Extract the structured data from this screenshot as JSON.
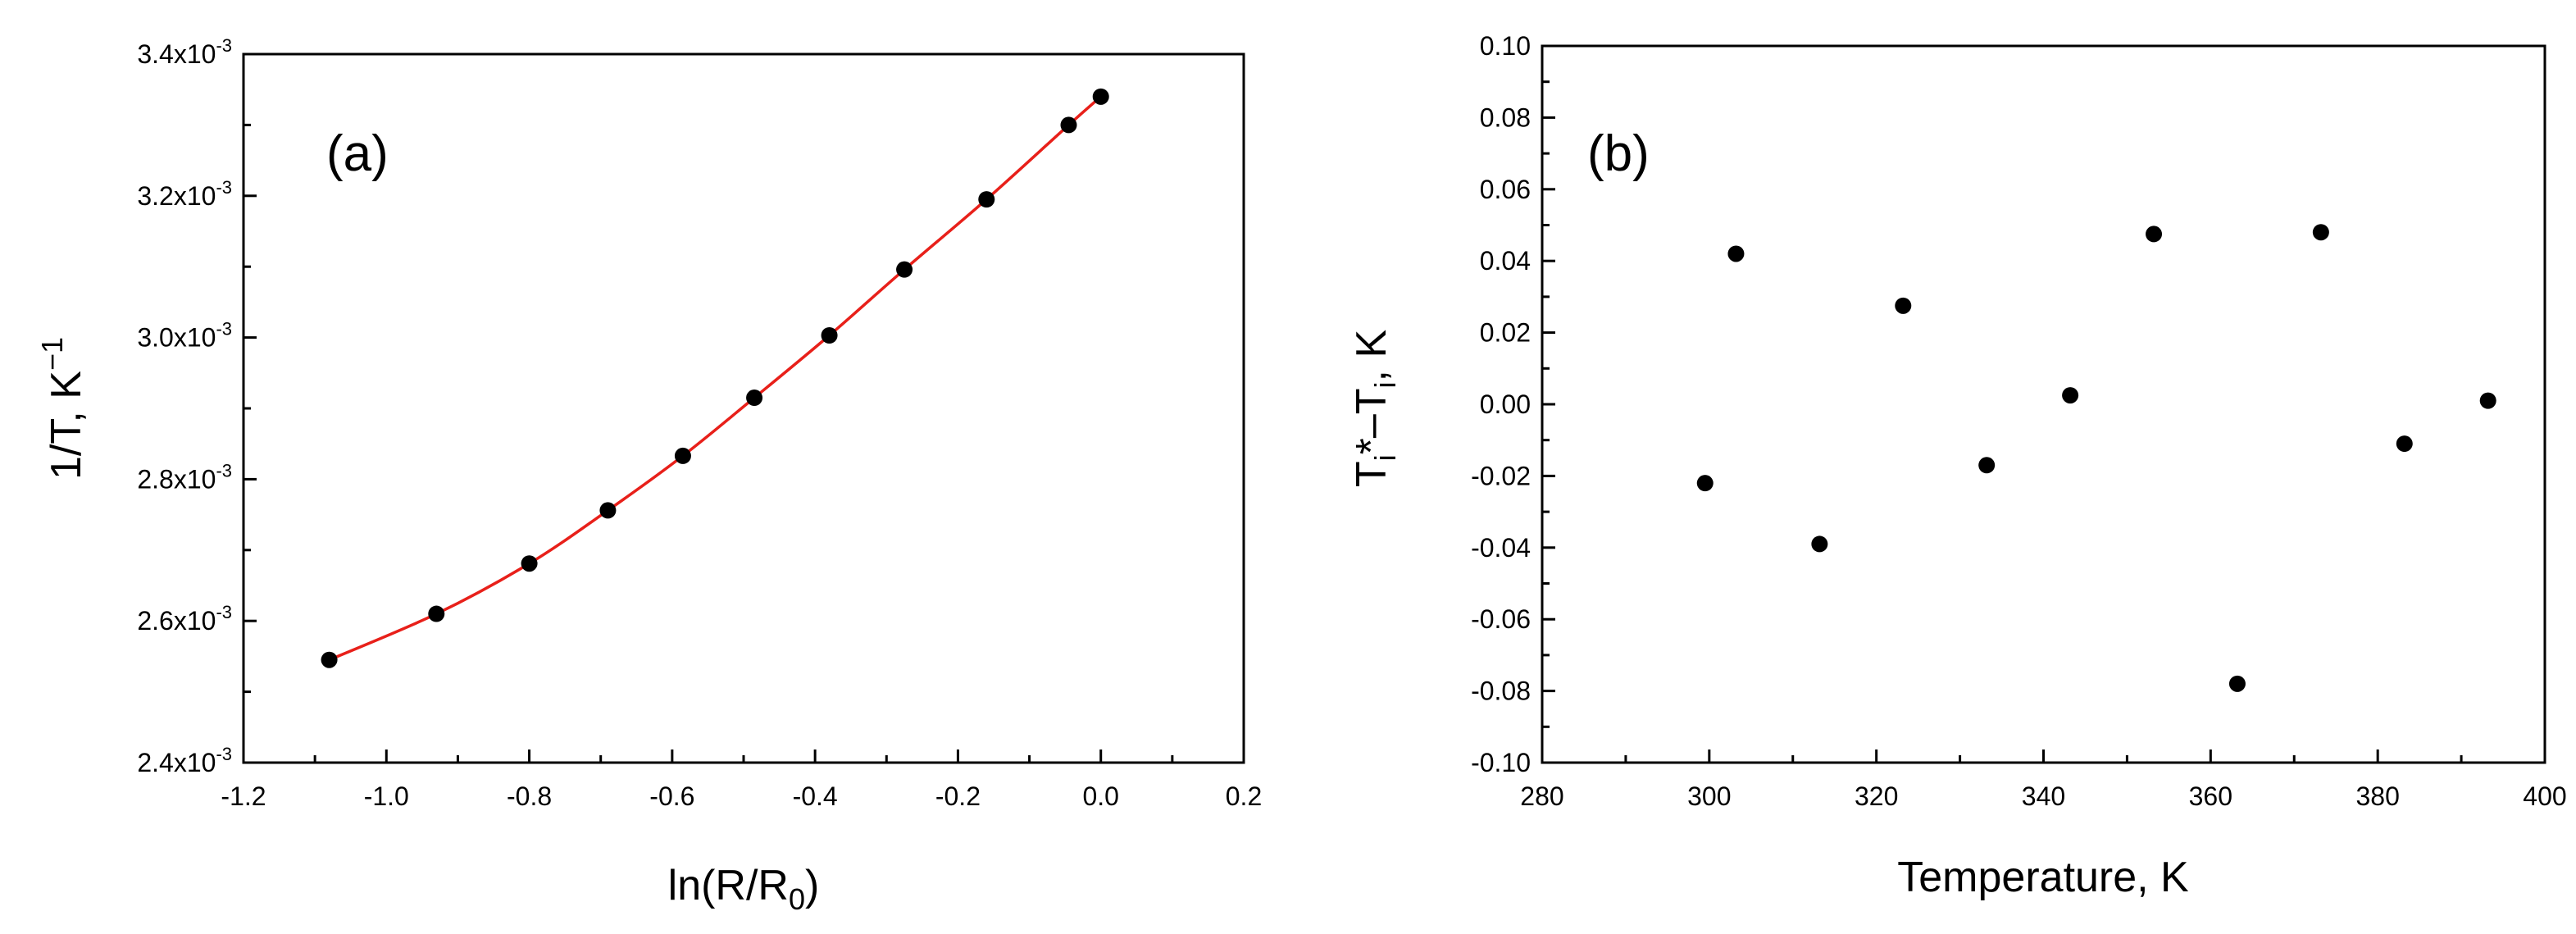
{
  "chart_data": [
    {
      "type": "scatter",
      "panel_label": "(a)",
      "xlabel": "ln(R/R0)",
      "ylabel": "1/T, K-1",
      "xlim": [
        -1.2,
        0.2
      ],
      "ylim": [
        0.0024,
        0.0034
      ],
      "x_ticks": [
        -1.2,
        -1.0,
        -0.8,
        -0.6,
        -0.4,
        -0.2,
        0.0,
        0.2
      ],
      "x_tick_labels": [
        "-1.2",
        "-1.0",
        "-0.8",
        "-0.6",
        "-0.4",
        "-0.2",
        "0.0",
        "0.2"
      ],
      "y_ticks": [
        0.0024,
        0.0026,
        0.0028,
        0.003,
        0.0032,
        0.0034
      ],
      "y_tick_labels": [
        {
          "mantissa": "2.4x10",
          "exp": "-3"
        },
        {
          "mantissa": "2.6x10",
          "exp": "-3"
        },
        {
          "mantissa": "2.8x10",
          "exp": "-3"
        },
        {
          "mantissa": "3.0x10",
          "exp": "-3"
        },
        {
          "mantissa": "3.2x10",
          "exp": "-3"
        },
        {
          "mantissa": "3.4x10",
          "exp": "-3"
        }
      ],
      "series": [
        {
          "x": [
            -1.08,
            -0.93,
            -0.8,
            -0.69,
            -0.585,
            -0.485,
            -0.38,
            -0.275,
            -0.16,
            -0.045,
            0.0
          ],
          "y": [
            0.002545,
            0.00261,
            0.002681,
            0.002756,
            0.002833,
            0.002915,
            0.003003,
            0.003096,
            0.003195,
            0.0033,
            0.00334
          ],
          "marker": "circle",
          "color": "#000000",
          "fit_line_color": "#e8201a"
        }
      ],
      "grid": false
    },
    {
      "type": "scatter",
      "panel_label": "(b)",
      "xlabel": "Temperature, K",
      "ylabel": "Ti*-Ti, K",
      "xlim": [
        280,
        400
      ],
      "ylim": [
        -0.1,
        0.1
      ],
      "x_ticks": [
        280,
        300,
        320,
        340,
        360,
        380,
        400
      ],
      "x_tick_labels": [
        "280",
        "300",
        "320",
        "340",
        "360",
        "380",
        "400"
      ],
      "y_ticks": [
        -0.1,
        -0.08,
        -0.06,
        -0.04,
        -0.02,
        0.0,
        0.02,
        0.04,
        0.06,
        0.08,
        0.1
      ],
      "y_tick_labels": [
        "-0.10",
        "-0.08",
        "-0.06",
        "-0.04",
        "-0.02",
        "0.00",
        "0.02",
        "0.04",
        "0.06",
        "0.08",
        "0.10"
      ],
      "series": [
        {
          "x": [
            299.5,
            303.2,
            313.2,
            323.2,
            333.2,
            343.2,
            353.2,
            363.2,
            373.2,
            383.2,
            393.2
          ],
          "y": [
            -0.022,
            0.042,
            -0.039,
            0.0275,
            -0.017,
            0.0025,
            0.0475,
            -0.078,
            0.048,
            -0.011,
            0.001
          ],
          "marker": "circle",
          "color": "#000000"
        }
      ],
      "grid": false
    }
  ]
}
